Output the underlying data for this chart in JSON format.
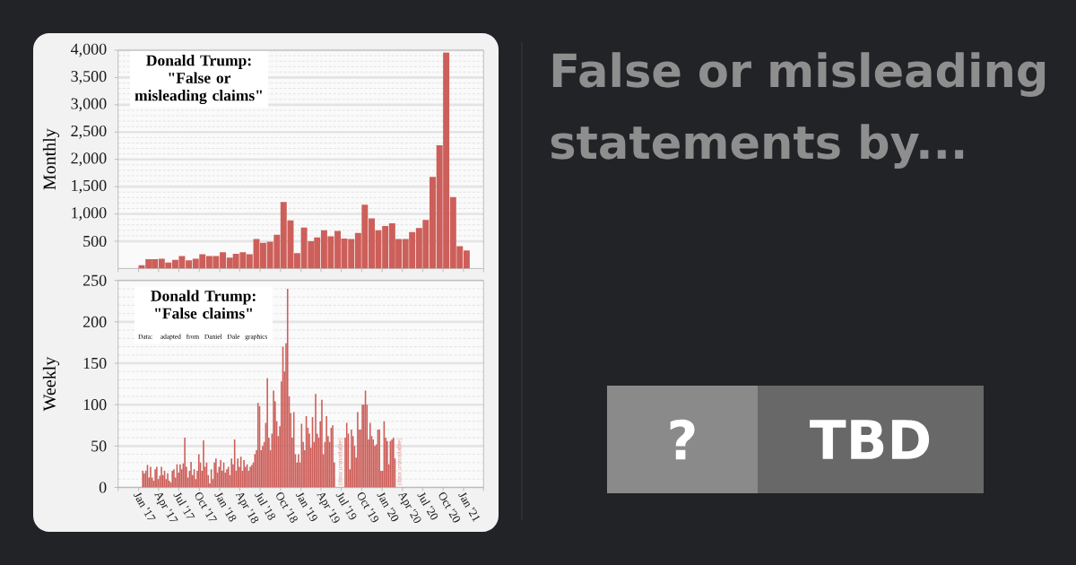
{
  "chart_data": [
    {
      "type": "bar",
      "title": "Donald Trump: \"False or misleading claims\"",
      "ylabel": "Monthly",
      "color": "#cd5f5a",
      "tick_labels": "y",
      "grid": "y",
      "x": [
        "2017-01-15",
        "2017-02-15",
        "2017-03-15",
        "2017-04-15",
        "2017-05-15",
        "2017-06-15",
        "2017-07-15",
        "2017-08-15",
        "2017-09-15",
        "2017-10-15",
        "2017-11-15",
        "2017-12-15",
        "2018-01-15",
        "2018-02-15",
        "2018-03-15",
        "2018-04-15",
        "2018-05-15",
        "2018-06-15",
        "2018-07-15",
        "2018-08-15",
        "2018-09-15",
        "2018-10-15",
        "2018-11-15",
        "2018-12-15",
        "2019-01-15",
        "2019-02-15",
        "2019-03-15",
        "2019-04-15",
        "2019-05-15",
        "2019-06-15",
        "2019-07-15",
        "2019-08-15",
        "2019-09-15",
        "2019-10-15",
        "2019-11-15",
        "2019-12-15",
        "2020-01-15",
        "2020-02-15",
        "2020-03-15",
        "2020-04-15",
        "2020-05-15",
        "2020-06-15",
        "2020-07-15",
        "2020-08-15",
        "2020-09-15",
        "2020-10-15",
        "2020-11-15",
        "2020-12-15",
        "2021-01-15"
      ],
      "values": [
        60,
        170,
        170,
        180,
        110,
        160,
        230,
        150,
        180,
        260,
        230,
        230,
        300,
        200,
        270,
        300,
        260,
        540,
        470,
        490,
        620,
        1220,
        880,
        280,
        750,
        500,
        570,
        700,
        590,
        690,
        550,
        540,
        650,
        1170,
        920,
        700,
        780,
        830,
        540,
        540,
        670,
        740,
        890,
        1680,
        2260,
        3960,
        1310,
        410,
        330
      ],
      "xlim": [
        "2016-10-01",
        "2021-04-01"
      ],
      "xticks": [
        {
          "value": "2016-10-01",
          "label": null
        },
        {
          "value": "2017-01-01",
          "label": null
        },
        {
          "value": "2017-04-01",
          "label": null
        },
        {
          "value": "2017-07-01",
          "label": null
        },
        {
          "value": "2017-10-01",
          "label": null
        },
        {
          "value": "2018-01-01",
          "label": null
        },
        {
          "value": "2018-04-01",
          "label": null
        },
        {
          "value": "2018-07-01",
          "label": null
        },
        {
          "value": "2018-10-01",
          "label": null
        },
        {
          "value": "2019-01-01",
          "label": null
        },
        {
          "value": "2019-04-01",
          "label": null
        },
        {
          "value": "2019-07-01",
          "label": null
        },
        {
          "value": "2019-10-01",
          "label": null
        },
        {
          "value": "2020-01-01",
          "label": null
        },
        {
          "value": "2020-04-01",
          "label": null
        },
        {
          "value": "2020-07-01",
          "label": null
        },
        {
          "value": "2020-10-01",
          "label": null
        },
        {
          "value": "2021-01-01",
          "label": null
        },
        {
          "value": "2021-04-01",
          "label": null
        }
      ],
      "ylim": [
        0,
        4000
      ],
      "yticks": [
        500,
        {
          "value": 1000,
          "label": "1,000"
        },
        {
          "value": 1500,
          "label": "1,500"
        },
        {
          "value": 2000,
          "label": "2,000"
        },
        {
          "value": 2500,
          "label": "2,500"
        },
        {
          "value": 3000,
          "label": "3,000"
        },
        {
          "value": 3500,
          "label": "3,500"
        },
        {
          "value": 4000,
          "label": "4,000"
        }
      ]
    },
    {
      "type": "bar",
      "title": "Donald Trump: \"False claims\"",
      "subtitle": "Data: adapted from Daniel Dale graphics",
      "ylabel": "Weekly",
      "color": "#cd5f5a",
      "grid": "y",
      "x": [
        "2017-01-20",
        "2017-01-27",
        "2017-02-03",
        "2017-02-10",
        "2017-02-17",
        "2017-02-24",
        "2017-03-03",
        "2017-03-10",
        "2017-03-17",
        "2017-03-24",
        "2017-03-31",
        "2017-04-07",
        "2017-04-14",
        "2017-04-21",
        "2017-04-28",
        "2017-05-05",
        "2017-05-12",
        "2017-05-19",
        "2017-05-26",
        "2017-06-02",
        "2017-06-09",
        "2017-06-16",
        "2017-06-23",
        "2017-06-30",
        "2017-07-07",
        "2017-07-14",
        "2017-07-21",
        "2017-07-28",
        "2017-08-04",
        "2017-08-11",
        "2017-08-18",
        "2017-08-25",
        "2017-09-01",
        "2017-09-08",
        "2017-09-15",
        "2017-09-22",
        "2017-09-29",
        "2017-10-06",
        "2017-10-13",
        "2017-10-20",
        "2017-10-27",
        "2017-11-03",
        "2017-11-10",
        "2017-11-17",
        "2017-11-24",
        "2017-12-01",
        "2017-12-08",
        "2017-12-15",
        "2017-12-22",
        "2017-12-29",
        "2018-01-05",
        "2018-01-12",
        "2018-01-19",
        "2018-01-26",
        "2018-02-02",
        "2018-02-09",
        "2018-02-16",
        "2018-02-23",
        "2018-03-02",
        "2018-03-09",
        "2018-03-16",
        "2018-03-23",
        "2018-03-30",
        "2018-04-06",
        "2018-04-13",
        "2018-04-20",
        "2018-04-27",
        "2018-05-04",
        "2018-05-11",
        "2018-05-18",
        "2018-05-25",
        "2018-06-01",
        "2018-06-08",
        "2018-06-15",
        "2018-06-22",
        "2018-06-29",
        "2018-07-06",
        "2018-07-13",
        "2018-07-20",
        "2018-07-27",
        "2018-08-03",
        "2018-08-10",
        "2018-08-17",
        "2018-08-24",
        "2018-08-31",
        "2018-09-07",
        "2018-09-14",
        "2018-09-21",
        "2018-09-28",
        "2018-10-05",
        "2018-10-12",
        "2018-10-19",
        "2018-10-26",
        "2018-11-02",
        "2018-11-09",
        "2018-11-16",
        "2018-11-23",
        "2018-11-30",
        "2018-12-07",
        "2018-12-14",
        "2018-12-21",
        "2018-12-28",
        "2019-01-04",
        "2019-01-11",
        "2019-01-18",
        "2019-01-25",
        "2019-02-01",
        "2019-02-08",
        "2019-02-15",
        "2019-02-22",
        "2019-03-01",
        "2019-03-08",
        "2019-03-15",
        "2019-03-22",
        "2019-03-29",
        "2019-04-05",
        "2019-04-12",
        "2019-04-19",
        "2019-04-26",
        "2019-05-03",
        "2019-05-10",
        "2019-05-17",
        "2019-05-24",
        "2019-05-31",
        "2019-06-07",
        "2019-06-14",
        "2019-06-21",
        "2019-06-28",
        "2019-07-05",
        "2019-07-12",
        "2019-07-19",
        "2019-07-26",
        "2019-08-02",
        "2019-08-09",
        "2019-08-16",
        "2019-08-23",
        "2019-08-30",
        "2019-09-06",
        "2019-09-13",
        "2019-09-20",
        "2019-09-27",
        "2019-10-04",
        "2019-10-11",
        "2019-10-18",
        "2019-10-25",
        "2019-11-01",
        "2019-11-08",
        "2019-11-15",
        "2019-11-22",
        "2019-11-29",
        "2019-12-06",
        "2019-12-13",
        "2019-12-20",
        "2019-12-27",
        "2020-01-03",
        "2020-01-10",
        "2020-01-17",
        "2020-01-24",
        "2020-01-31",
        "2020-02-07",
        "2020-02-14",
        "2020-02-21",
        "2020-02-28"
      ],
      "values": [
        20,
        17,
        20,
        27,
        12,
        25,
        12,
        8,
        22,
        25,
        10,
        14,
        25,
        15,
        20,
        10,
        17,
        8,
        6,
        20,
        22,
        12,
        28,
        18,
        28,
        22,
        29,
        60,
        25,
        12,
        20,
        31,
        15,
        22,
        10,
        20,
        40,
        30,
        20,
        57,
        25,
        30,
        15,
        5,
        22,
        10,
        30,
        35,
        18,
        25,
        33,
        20,
        30,
        18,
        22,
        25,
        15,
        35,
        28,
        58,
        20,
        35,
        25,
        37,
        20,
        33,
        25,
        28,
        20,
        25,
        27,
        30,
        40,
        45,
        102,
        98,
        45,
        50,
        55,
        78,
        132,
        60,
        45,
        65,
        117,
        104,
        80,
        62,
        74,
        128,
        170,
        140,
        174,
        240,
        110,
        90,
        60,
        91,
        40,
        30,
        40,
        30,
        77,
        55,
        45,
        86,
        72,
        65,
        48,
        85,
        55,
        113,
        65,
        60,
        80,
        106,
        40,
        55,
        86,
        62,
        55,
        72,
        75,
        30,
        null,
        null,
        null,
        null,
        null,
        null,
        60,
        78,
        65,
        22,
        70,
        62,
        50,
        36,
        91,
        70,
        70,
        100,
        100,
        117,
        100,
        58,
        78,
        62,
        58,
        50,
        52,
        70,
        70,
        20,
        20,
        80,
        60,
        56,
        28,
        56,
        58,
        60,
        35
      ],
      "xlim": [
        "2016-10-01",
        "2021-04-01"
      ],
      "xticks": [
        {
          "value": "2016-10-01",
          "label": null
        },
        {
          "value": "2017-01-01",
          "label": "Jan '17"
        },
        {
          "value": "2017-04-01",
          "label": "Apr '17"
        },
        {
          "value": "2017-07-01",
          "label": "Jul '17"
        },
        {
          "value": "2017-10-01",
          "label": "Oct '17"
        },
        {
          "value": "2018-01-01",
          "label": "Jan '18"
        },
        {
          "value": "2018-04-01",
          "label": "Apr '18"
        },
        {
          "value": "2018-07-01",
          "label": "Jul '18"
        },
        {
          "value": "2018-10-01",
          "label": "Oct '18"
        },
        {
          "value": "2019-01-01",
          "label": "Jan '19"
        },
        {
          "value": "2019-04-01",
          "label": "Apr '19"
        },
        {
          "value": "2019-07-01",
          "label": "Jul '19"
        },
        {
          "value": "2019-10-01",
          "label": "Oct '19"
        },
        {
          "value": "2020-01-01",
          "label": "Jan '20"
        },
        {
          "value": "2020-04-01",
          "label": "Apr '20"
        },
        {
          "value": "2020-07-01",
          "label": "Jul '20"
        },
        {
          "value": "2020-10-01",
          "label": "Oct '20"
        },
        {
          "value": "2021-01-01",
          "label": "Jan '21"
        },
        {
          "value": "2021-04-01",
          "label": null
        }
      ],
      "ylim": [
        0,
        250
      ],
      "yticks": [
        0,
        50,
        100,
        150,
        200,
        250
      ],
      "annotations": [
        {
          "text": "(data unavailable)",
          "x": "2019-06-28",
          "y": 0
        },
        {
          "text": "(data unavailable)",
          "x": "2020-03-20",
          "y": 0
        }
      ]
    },
    {
      "type": "other",
      "title": "False or misleading statements by...",
      "annotations": [
        "?",
        "TBD"
      ]
    }
  ]
}
